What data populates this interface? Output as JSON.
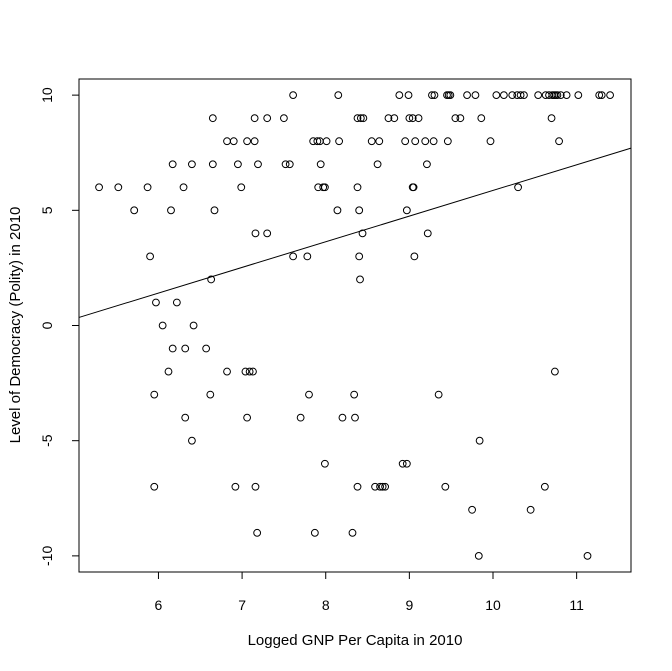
{
  "chart_data": {
    "type": "scatter",
    "title": "",
    "xlabel": "Logged GNP Per Capita in 2010",
    "ylabel": "Level of Democracy (Polity) in 2010",
    "xlim": [
      5.05,
      11.65
    ],
    "ylim": [
      -10.7,
      10.7
    ],
    "xticks": [
      "6",
      "7",
      "8",
      "9",
      "10",
      "11"
    ],
    "yticks": [
      "-10",
      "-5",
      "0",
      "5",
      "10"
    ],
    "grid": false,
    "legend": "none",
    "marker": "open-circle",
    "fit_line": {
      "x0": 5.05,
      "y0": 0.35,
      "x1": 11.65,
      "y1": 7.7
    },
    "points": [
      [
        5.29,
        6
      ],
      [
        5.52,
        6
      ],
      [
        5.71,
        5
      ],
      [
        5.87,
        6
      ],
      [
        5.9,
        3
      ],
      [
        5.95,
        -3
      ],
      [
        5.95,
        -7
      ],
      [
        5.97,
        1
      ],
      [
        6.05,
        0
      ],
      [
        6.12,
        -2
      ],
      [
        6.15,
        5
      ],
      [
        6.17,
        7
      ],
      [
        6.17,
        -1
      ],
      [
        6.22,
        1
      ],
      [
        6.3,
        6
      ],
      [
        6.32,
        -1
      ],
      [
        6.32,
        -4
      ],
      [
        6.4,
        7
      ],
      [
        6.4,
        -5
      ],
      [
        6.42,
        0
      ],
      [
        6.57,
        -1
      ],
      [
        6.62,
        -3
      ],
      [
        6.63,
        2
      ],
      [
        6.65,
        7
      ],
      [
        6.65,
        9
      ],
      [
        6.67,
        5
      ],
      [
        6.82,
        8
      ],
      [
        6.82,
        -2
      ],
      [
        6.9,
        8
      ],
      [
        6.92,
        -7
      ],
      [
        6.95,
        7
      ],
      [
        6.99,
        6
      ],
      [
        7.04,
        -2
      ],
      [
        7.06,
        8
      ],
      [
        7.06,
        -4
      ],
      [
        7.09,
        -2
      ],
      [
        7.13,
        -2
      ],
      [
        7.15,
        8
      ],
      [
        7.15,
        9
      ],
      [
        7.16,
        4
      ],
      [
        7.16,
        -7
      ],
      [
        7.18,
        -9
      ],
      [
        7.19,
        7
      ],
      [
        7.3,
        9
      ],
      [
        7.3,
        4
      ],
      [
        7.5,
        9
      ],
      [
        7.52,
        7
      ],
      [
        7.57,
        7
      ],
      [
        7.61,
        3
      ],
      [
        7.61,
        10
      ],
      [
        7.7,
        -4
      ],
      [
        7.78,
        3
      ],
      [
        7.8,
        -3
      ],
      [
        7.85,
        8
      ],
      [
        7.87,
        -9
      ],
      [
        7.9,
        8
      ],
      [
        7.91,
        6
      ],
      [
        7.93,
        8
      ],
      [
        7.94,
        7
      ],
      [
        7.97,
        6
      ],
      [
        7.99,
        6
      ],
      [
        7.99,
        -6
      ],
      [
        8.01,
        8
      ],
      [
        8.14,
        5
      ],
      [
        8.15,
        10
      ],
      [
        8.16,
        8
      ],
      [
        8.2,
        -4
      ],
      [
        8.32,
        -9
      ],
      [
        8.34,
        -3
      ],
      [
        8.35,
        -4
      ],
      [
        8.38,
        9
      ],
      [
        8.38,
        6
      ],
      [
        8.38,
        -7
      ],
      [
        8.4,
        5
      ],
      [
        8.4,
        3
      ],
      [
        8.41,
        2
      ],
      [
        8.42,
        9
      ],
      [
        8.44,
        4
      ],
      [
        8.45,
        9
      ],
      [
        8.55,
        8
      ],
      [
        8.59,
        -7
      ],
      [
        8.62,
        7
      ],
      [
        8.64,
        8
      ],
      [
        8.65,
        -7
      ],
      [
        8.68,
        -7
      ],
      [
        8.71,
        -7
      ],
      [
        8.75,
        9
      ],
      [
        8.82,
        9
      ],
      [
        8.88,
        10
      ],
      [
        8.92,
        -6
      ],
      [
        8.95,
        8
      ],
      [
        8.97,
        -6
      ],
      [
        8.97,
        5
      ],
      [
        8.99,
        10
      ],
      [
        9.0,
        9
      ],
      [
        9.04,
        9
      ],
      [
        9.04,
        6
      ],
      [
        9.05,
        6
      ],
      [
        9.06,
        3
      ],
      [
        9.07,
        8
      ],
      [
        9.11,
        9
      ],
      [
        9.19,
        8
      ],
      [
        9.21,
        7
      ],
      [
        9.22,
        4
      ],
      [
        9.27,
        10
      ],
      [
        9.3,
        10
      ],
      [
        9.29,
        8
      ],
      [
        9.35,
        -3
      ],
      [
        9.43,
        -7
      ],
      [
        9.45,
        10
      ],
      [
        9.46,
        8
      ],
      [
        9.47,
        10
      ],
      [
        9.49,
        10
      ],
      [
        9.55,
        9
      ],
      [
        9.61,
        9
      ],
      [
        9.69,
        10
      ],
      [
        9.75,
        -8
      ],
      [
        9.79,
        10
      ],
      [
        9.83,
        -10
      ],
      [
        9.84,
        -5
      ],
      [
        9.86,
        9
      ],
      [
        9.97,
        8
      ],
      [
        10.04,
        10
      ],
      [
        10.13,
        10
      ],
      [
        10.23,
        10
      ],
      [
        10.29,
        10
      ],
      [
        10.3,
        6
      ],
      [
        10.33,
        10
      ],
      [
        10.37,
        10
      ],
      [
        10.45,
        -8
      ],
      [
        10.54,
        10
      ],
      [
        10.62,
        -7
      ],
      [
        10.63,
        10
      ],
      [
        10.67,
        10
      ],
      [
        10.7,
        9
      ],
      [
        10.71,
        10
      ],
      [
        10.73,
        10
      ],
      [
        10.74,
        -2
      ],
      [
        10.75,
        10
      ],
      [
        10.77,
        10
      ],
      [
        10.79,
        8
      ],
      [
        10.81,
        10
      ],
      [
        10.88,
        10
      ],
      [
        11.02,
        10
      ],
      [
        11.13,
        -10
      ],
      [
        11.27,
        10
      ],
      [
        11.3,
        10
      ],
      [
        11.4,
        10
      ]
    ]
  }
}
